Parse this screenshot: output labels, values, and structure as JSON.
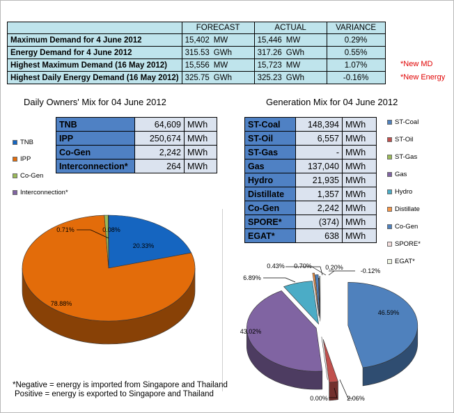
{
  "summary_table": {
    "headers": [
      "",
      "FORECAST",
      "ACTUAL",
      "VARIANCE"
    ],
    "rows": [
      {
        "label": "Maximum Demand for 4 June 2012",
        "forecast": "15,402",
        "forecast_unit": "MW",
        "actual": "15,446",
        "actual_unit": "MW",
        "variance": "0.29%",
        "note": ""
      },
      {
        "label": "Energy Demand for 4 June 2012",
        "forecast": "315.53",
        "forecast_unit": "GWh",
        "actual": "317.26",
        "actual_unit": "GWh",
        "variance": "0.55%",
        "note": ""
      },
      {
        "label": "Highest Maximum Demand (16 May 2012)",
        "forecast": "15,556",
        "forecast_unit": "MW",
        "actual": "15,723",
        "actual_unit": "MW",
        "variance": "1.07%",
        "note": "*New MD"
      },
      {
        "label": "Highest Daily Energy Demand (16 May 2012)",
        "forecast": "325.75",
        "forecast_unit": "GWh",
        "actual": "325.23",
        "actual_unit": "GWh",
        "variance": "-0.16%",
        "note": "*New Energy"
      }
    ]
  },
  "owners": {
    "title": "Daily Owners' Mix for 04 June 2012",
    "table": [
      {
        "name": "TNB",
        "value": "64,609",
        "unit": "MWh"
      },
      {
        "name": "IPP",
        "value": "250,674",
        "unit": "MWh"
      },
      {
        "name": "Co-Gen",
        "value": "2,242",
        "unit": "MWh"
      },
      {
        "name": "Interconnection*",
        "value": "264",
        "unit": "MWh"
      }
    ],
    "legend": [
      {
        "label": "TNB",
        "color": "#1565c0"
      },
      {
        "label": "IPP",
        "color": "#e36c0a"
      },
      {
        "label": "Co-Gen",
        "color": "#9bbb59"
      },
      {
        "label": "Interconnection*",
        "color": "#8064a2"
      }
    ]
  },
  "generation": {
    "title": "Generation Mix for 04 June 2012",
    "table": [
      {
        "name": "ST-Coal",
        "value": "148,394",
        "unit": "MWh"
      },
      {
        "name": "ST-Oil",
        "value": "6,557",
        "unit": "MWh"
      },
      {
        "name": "ST-Gas",
        "value": "-",
        "unit": "MWh"
      },
      {
        "name": "Gas",
        "value": "137,040",
        "unit": "MWh"
      },
      {
        "name": "Hydro",
        "value": "21,935",
        "unit": "MWh"
      },
      {
        "name": "Distillate",
        "value": "1,357",
        "unit": "MWh"
      },
      {
        "name": "Co-Gen",
        "value": "2,242",
        "unit": "MWh"
      },
      {
        "name": "SPORE*",
        "value": "(374)",
        "unit": "MWh"
      },
      {
        "name": "EGAT*",
        "value": "638",
        "unit": "MWh"
      }
    ],
    "legend": [
      {
        "label": "ST-Coal",
        "color": "#4f81bd"
      },
      {
        "label": "ST-Oil",
        "color": "#c0504d"
      },
      {
        "label": "ST-Gas",
        "color": "#9bbb59"
      },
      {
        "label": "Gas",
        "color": "#8064a2"
      },
      {
        "label": "Hydro",
        "color": "#4bacc6"
      },
      {
        "label": "Distillate",
        "color": "#f79646"
      },
      {
        "label": "Co-Gen",
        "color": "#4f81bd"
      },
      {
        "label": "SPORE*",
        "color": "#f2dcdb"
      },
      {
        "label": "EGAT*",
        "color": "#ebf1de"
      }
    ]
  },
  "chart_data": [
    {
      "type": "pie",
      "title": "Daily Owners' Mix for 04 June 2012",
      "categories": [
        "TNB",
        "IPP",
        "Co-Gen",
        "Interconnection*"
      ],
      "values": [
        20.33,
        78.88,
        0.71,
        0.08
      ],
      "labels": [
        "20.33%",
        "78.88%",
        "0.71%",
        "0.08%"
      ],
      "colors": [
        "#1565c0",
        "#e36c0a",
        "#9bbb59",
        "#8064a2"
      ],
      "legend": "left"
    },
    {
      "type": "pie",
      "title": "Generation Mix for 04 June 2012",
      "categories": [
        "ST-Coal",
        "ST-Oil",
        "ST-Gas",
        "Gas",
        "Hydro",
        "Distillate",
        "Co-Gen",
        "SPORE*",
        "EGAT*"
      ],
      "values": [
        46.59,
        2.06,
        0.0,
        43.02,
        6.89,
        0.43,
        0.7,
        -0.12,
        0.2
      ],
      "labels": [
        "46.59%",
        "2.06%",
        "0.00%",
        "43.02%",
        "6.89%",
        "0.43%",
        "0.70%",
        "-0.12%",
        "0.20%"
      ],
      "colors": [
        "#4f81bd",
        "#c0504d",
        "#9bbb59",
        "#8064a2",
        "#4bacc6",
        "#f79646",
        "#4f81bd",
        "#f2dcdb",
        "#ebf1de"
      ],
      "legend": "right"
    }
  ],
  "footnote": {
    "line1": "*Negative = energy is imported from Singapore and Thailand",
    "line2": "Positive = energy is exported to Singapore and Thailand"
  }
}
